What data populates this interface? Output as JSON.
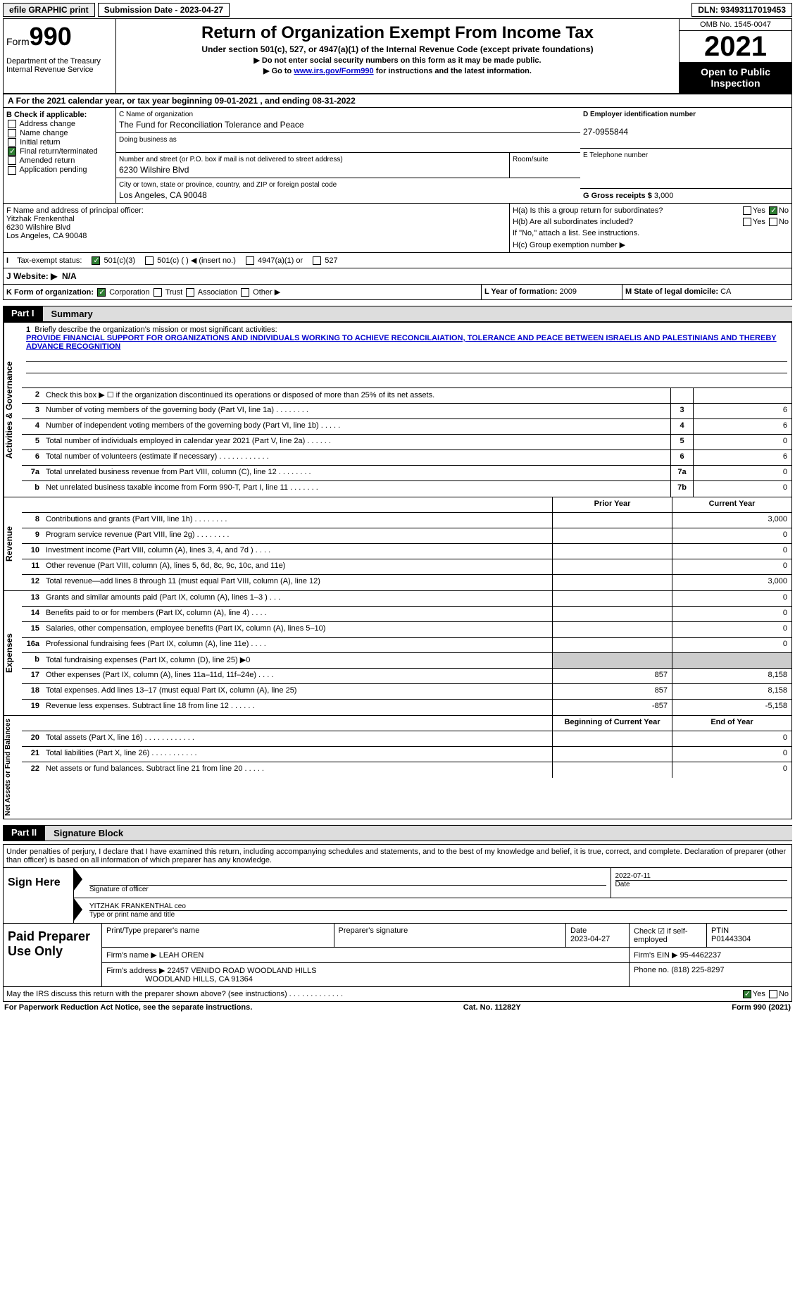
{
  "topbar": {
    "efile": "efile GRAPHIC print",
    "submission": "Submission Date - 2023-04-27",
    "dln": "DLN: 93493117019453"
  },
  "header": {
    "form_label": "Form",
    "form_num": "990",
    "title": "Return of Organization Exempt From Income Tax",
    "subtitle": "Under section 501(c), 527, or 4947(a)(1) of the Internal Revenue Code (except private foundations)",
    "note1": "▶ Do not enter social security numbers on this form as it may be made public.",
    "note2_pre": "▶ Go to ",
    "note2_link": "www.irs.gov/Form990",
    "note2_post": " for instructions and the latest information.",
    "dept": "Department of the Treasury\nInternal Revenue Service",
    "omb": "OMB No. 1545-0047",
    "year": "2021",
    "open": "Open to Public Inspection"
  },
  "A": {
    "text": "For the 2021 calendar year, or tax year beginning 09-01-2021   , and ending 08-31-2022"
  },
  "B": {
    "label": "B Check if applicable:",
    "opts": [
      "Address change",
      "Name change",
      "Initial return",
      "Final return/terminated",
      "Amended return",
      "Application pending"
    ],
    "checked_idx": 3
  },
  "C": {
    "name_label": "C Name of organization",
    "name": "The Fund for Reconciliation Tolerance and Peace",
    "dba_label": "Doing business as",
    "addr_label": "Number and street (or P.O. box if mail is not delivered to street address)",
    "addr": "6230 Wilshire Blvd",
    "room_label": "Room/suite",
    "city_label": "City or town, state or province, country, and ZIP or foreign postal code",
    "city": "Los Angeles, CA  90048"
  },
  "D": {
    "ein_label": "D Employer identification number",
    "ein": "27-0955844",
    "phone_label": "E Telephone number",
    "gross_label": "G Gross receipts $ ",
    "gross": "3,000"
  },
  "F": {
    "label": "F  Name and address of principal officer:",
    "name": "Yitzhak Frenkenthal",
    "addr1": "6230 Wilshire Blvd",
    "addr2": "Los Angeles, CA  90048"
  },
  "H": {
    "a": "H(a)  Is this a group return for subordinates?",
    "b": "H(b)  Are all subordinates included?",
    "note": "If \"No,\" attach a list. See instructions.",
    "c": "H(c)  Group exemption number ▶"
  },
  "I": {
    "label": "Tax-exempt status:",
    "opts": [
      "501(c)(3)",
      "501(c) (  ) ◀ (insert no.)",
      "4947(a)(1) or",
      "527"
    ]
  },
  "J": {
    "label": "J  Website: ▶",
    "val": "N/A"
  },
  "K": {
    "label": "K Form of organization:",
    "opts": [
      "Corporation",
      "Trust",
      "Association",
      "Other ▶"
    ]
  },
  "L": {
    "label": "L Year of formation: ",
    "val": "2009"
  },
  "M": {
    "label": "M State of legal domicile: ",
    "val": "CA"
  },
  "partI": {
    "tag": "Part I",
    "title": "Summary"
  },
  "mission": {
    "prompt": "Briefly describe the organization's mission or most significant activities:",
    "text": "PROVIDE FINANCIAL SUPPORT FOR ORGANIZATIONS AND INDIVIDUALS WORKING TO ACHIEVE RECONCILAIATION, TOLERANCE AND PEACE BETWEEN ISRAELIS AND PALESTINIANS AND THEREBY ADVANCE RECOGNITION"
  },
  "gov_lines": [
    {
      "n": "2",
      "d": "Check this box ▶ ☐ if the organization discontinued its operations or disposed of more than 25% of its net assets.",
      "box": "",
      "val": ""
    },
    {
      "n": "3",
      "d": "Number of voting members of the governing body (Part VI, line 1a)   .    .    .    .    .    .    .    .",
      "box": "3",
      "val": "6"
    },
    {
      "n": "4",
      "d": "Number of independent voting members of the governing body (Part VI, line 1b)   .    .    .    .    .",
      "box": "4",
      "val": "6"
    },
    {
      "n": "5",
      "d": "Total number of individuals employed in calendar year 2021 (Part V, line 2a)   .    .    .    .    .    .",
      "box": "5",
      "val": "0"
    },
    {
      "n": "6",
      "d": "Total number of volunteers (estimate if necessary)    .    .    .    .    .    .    .    .    .    .    .    .",
      "box": "6",
      "val": "6"
    },
    {
      "n": "7a",
      "d": "Total unrelated business revenue from Part VIII, column (C), line 12    .    .    .    .    .    .    .    .",
      "box": "7a",
      "val": "0"
    },
    {
      "n": "b",
      "d": "Net unrelated business taxable income from Form 990-T, Part I, line 11   .    .    .    .    .    .    .",
      "box": "7b",
      "val": "0"
    }
  ],
  "col_headers": {
    "prior": "Prior Year",
    "curr": "Current Year"
  },
  "rev_lines": [
    {
      "n": "8",
      "d": "Contributions and grants (Part VIII, line 1h)    .    .    .    .    .    .    .    .",
      "p": "",
      "c": "3,000"
    },
    {
      "n": "9",
      "d": "Program service revenue (Part VIII, line 2g)    .    .    .    .    .    .    .    .",
      "p": "",
      "c": "0"
    },
    {
      "n": "10",
      "d": "Investment income (Part VIII, column (A), lines 3, 4, and 7d )    .    .    .    .",
      "p": "",
      "c": "0"
    },
    {
      "n": "11",
      "d": "Other revenue (Part VIII, column (A), lines 5, 6d, 8c, 9c, 10c, and 11e)",
      "p": "",
      "c": "0"
    },
    {
      "n": "12",
      "d": "Total revenue—add lines 8 through 11 (must equal Part VIII, column (A), line 12)",
      "p": "",
      "c": "3,000"
    }
  ],
  "exp_lines": [
    {
      "n": "13",
      "d": "Grants and similar amounts paid (Part IX, column (A), lines 1–3 )    .    .    .",
      "p": "",
      "c": "0"
    },
    {
      "n": "14",
      "d": "Benefits paid to or for members (Part IX, column (A), line 4)    .    .    .    .",
      "p": "",
      "c": "0"
    },
    {
      "n": "15",
      "d": "Salaries, other compensation, employee benefits (Part IX, column (A), lines 5–10)",
      "p": "",
      "c": "0"
    },
    {
      "n": "16a",
      "d": "Professional fundraising fees (Part IX, column (A), line 11e)    .    .    .    .",
      "p": "",
      "c": "0"
    },
    {
      "n": "b",
      "d": "Total fundraising expenses (Part IX, column (D), line 25) ▶0",
      "p": "",
      "c": "",
      "shaded": true
    },
    {
      "n": "17",
      "d": "Other expenses (Part IX, column (A), lines 11a–11d, 11f–24e)    .    .    .    .",
      "p": "857",
      "c": "8,158"
    },
    {
      "n": "18",
      "d": "Total expenses. Add lines 13–17 (must equal Part IX, column (A), line 25)",
      "p": "857",
      "c": "8,158"
    },
    {
      "n": "19",
      "d": "Revenue less expenses. Subtract line 18 from line 12   .    .    .    .    .    .",
      "p": "-857",
      "c": "-5,158"
    }
  ],
  "na_headers": {
    "prior": "Beginning of Current Year",
    "curr": "End of Year"
  },
  "na_lines": [
    {
      "n": "20",
      "d": "Total assets (Part X, line 16)    .    .    .    .    .    .    .    .    .    .    .    .",
      "p": "",
      "c": "0"
    },
    {
      "n": "21",
      "d": "Total liabilities (Part X, line 26)    .    .    .    .    .    .    .    .    .    .    .",
      "p": "",
      "c": "0"
    },
    {
      "n": "22",
      "d": "Net assets or fund balances. Subtract line 21 from line 20   .    .    .    .    .",
      "p": "",
      "c": "0"
    }
  ],
  "partII": {
    "tag": "Part II",
    "title": "Signature Block"
  },
  "sig": {
    "intro": "Under penalties of perjury, I declare that I have examined this return, including accompanying schedules and statements, and to the best of my knowledge and belief, it is true, correct, and complete. Declaration of preparer (other than officer) is based on all information of which preparer has any knowledge.",
    "sign_here": "Sign Here",
    "sig_label": "Signature of officer",
    "date_val": "2022-07-11",
    "date_label": "Date",
    "name_val": "YITZHAK FRANKENTHAL ceo",
    "name_label": "Type or print name and title"
  },
  "paid": {
    "title": "Paid Preparer Use Only",
    "p1": "Print/Type preparer's name",
    "p2": "Preparer's signature",
    "p3_label": "Date",
    "p3_val": "2023-04-27",
    "p4": "Check ☑ if self-employed",
    "p5_label": "PTIN",
    "p5_val": "P01443304",
    "firm_label": "Firm's name    ▶ ",
    "firm": "LEAH OREN",
    "ein_label": "Firm's EIN ▶ ",
    "ein": "95-4462237",
    "addr_label": "Firm's address ▶",
    "addr1": "22457 VENIDO ROAD WOODLAND HILLS",
    "addr2": "WOODLAND HILLS, CA  91364",
    "phone_label": "Phone no. ",
    "phone": "(818) 225-8297"
  },
  "discuss": "May the IRS discuss this return with the preparer shown above? (see instructions)    .    .    .    .    .    .    .    .    .    .    .    .    .",
  "footer": {
    "left": "For Paperwork Reduction Act Notice, see the separate instructions.",
    "mid": "Cat. No. 11282Y",
    "right": "Form 990 (2021)"
  },
  "vlabels": {
    "gov": "Activities & Governance",
    "rev": "Revenue",
    "exp": "Expenses",
    "na": "Net Assets or Fund Balances"
  }
}
